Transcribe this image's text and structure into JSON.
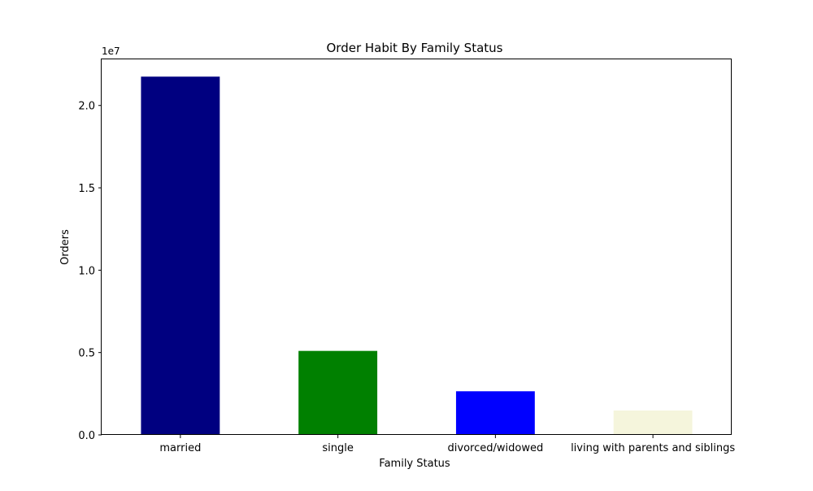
{
  "chart_data": {
    "type": "bar",
    "title": "Order Habit By Family Status",
    "xlabel": "Family Status",
    "ylabel": "Orders",
    "y_offset_label": "1e7",
    "categories": [
      "married",
      "single",
      "divorced/widowed",
      "living with parents and siblings"
    ],
    "values": [
      21750000,
      5100000,
      2650000,
      1480000
    ],
    "colors": [
      "#000080",
      "#008000",
      "#0000ff",
      "#f5f5dc"
    ],
    "ylim": [
      0,
      22800000
    ],
    "yticks": [
      {
        "value": 0,
        "label": "0.0"
      },
      {
        "value": 5000000,
        "label": "0.5"
      },
      {
        "value": 10000000,
        "label": "1.0"
      },
      {
        "value": 15000000,
        "label": "1.5"
      },
      {
        "value": 20000000,
        "label": "2.0"
      }
    ],
    "grid": false,
    "legend": "none"
  }
}
